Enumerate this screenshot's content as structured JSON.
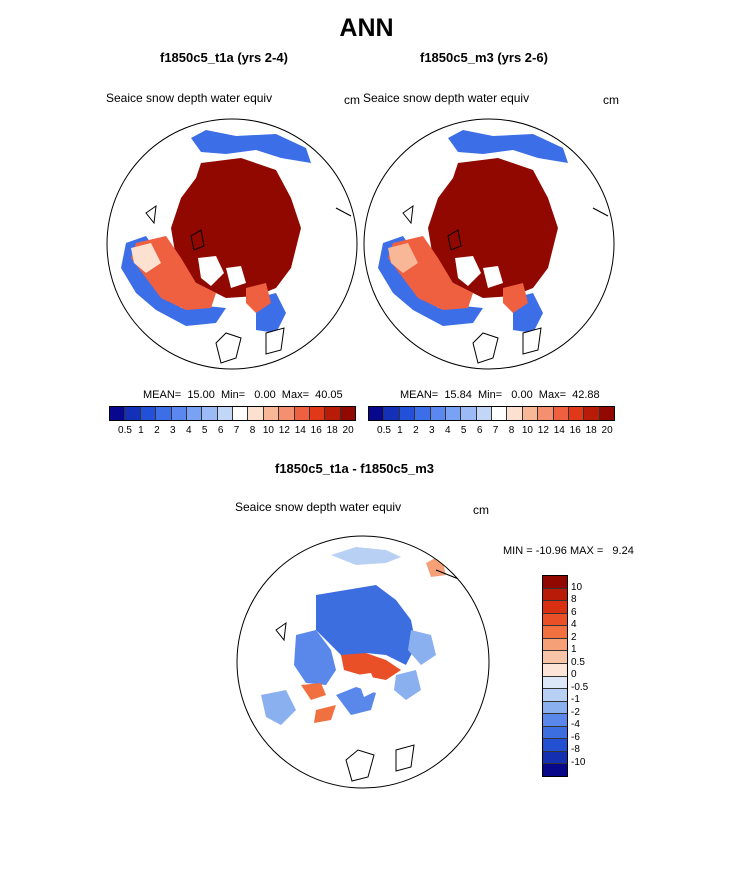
{
  "title": "ANN",
  "panels": [
    {
      "title": "f1850c5_t1a (yrs 2-4)",
      "variable": "Seaice snow depth water equiv",
      "units": "cm",
      "stats": "MEAN=  15.00  Min=   0.00  Max=  40.05"
    },
    {
      "title": "f1850c5_m3 (yrs 2-6)",
      "variable": "Seaice snow depth water equiv",
      "units": "cm",
      "stats": "MEAN=  15.84  Min=   0.00  Max=  42.88"
    }
  ],
  "diff_panel": {
    "title": "f1850c5_t1a - f1850c5_m3",
    "variable": "Seaice snow depth water equiv",
    "units": "cm",
    "stats": "MIN = -10.96 MAX =   9.24"
  },
  "colorbar_top": {
    "labels": [
      "0.5",
      "1",
      "2",
      "3",
      "4",
      "5",
      "6",
      "7",
      "8",
      "10",
      "12",
      "14",
      "16",
      "18",
      "20"
    ],
    "colors": [
      "#08088f",
      "#1430b8",
      "#2250d8",
      "#3c6ee8",
      "#5a88f0",
      "#7aa2f4",
      "#9cbaf6",
      "#c2d6f8",
      "#ffffff",
      "#fce0d0",
      "#f8b898",
      "#f49070",
      "#ee6040",
      "#e03818",
      "#b81c08",
      "#900800"
    ]
  },
  "colorbar_diff": {
    "labels": [
      "10",
      "8",
      "6",
      "4",
      "2",
      "1",
      "0.5",
      "0",
      "-0.5",
      "-1",
      "-2",
      "-4",
      "-6",
      "-8",
      "-10"
    ],
    "colors": [
      "#900800",
      "#b81c08",
      "#d83010",
      "#ea5028",
      "#f07040",
      "#f6a078",
      "#f8c4a8",
      "#fce4d6",
      "#dce8f8",
      "#b8d0f4",
      "#8ab0f0",
      "#5a88ea",
      "#3c6ee0",
      "#2250d0",
      "#1430b0",
      "#08088a"
    ]
  }
}
